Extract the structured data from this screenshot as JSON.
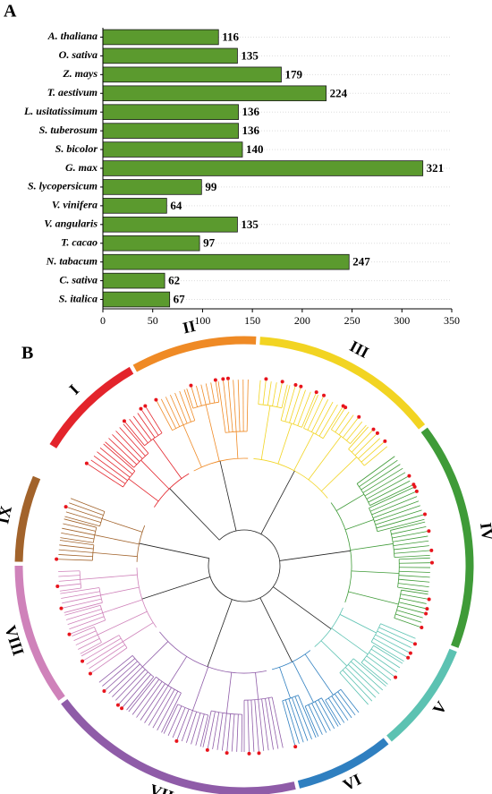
{
  "chart_data": {
    "type": "bar",
    "orientation": "horizontal",
    "panel_label": "A",
    "categories": [
      "A. thaliana",
      "O. sativa",
      "Z. mays",
      "T. aestivum",
      "L. usitatissimum",
      "S. tuberosum",
      "S. bicolor",
      "G. max",
      "S. lycopersicum",
      "V. vinifera",
      "V. angularis",
      "T. cacao",
      "N. tabacum",
      "C. sativa",
      "S. italica"
    ],
    "values": [
      116,
      135,
      179,
      224,
      136,
      136,
      140,
      321,
      99,
      64,
      135,
      97,
      247,
      62,
      67
    ],
    "color": "#5b9a2e",
    "xlim": [
      0,
      350
    ],
    "xticks": [
      0,
      50,
      100,
      150,
      200,
      250,
      300,
      350
    ]
  },
  "tree": {
    "panel_label": "B",
    "clades": [
      {
        "name": "I",
        "color": "#e3242b"
      },
      {
        "name": "II",
        "color": "#ef8a25"
      },
      {
        "name": "III",
        "color": "#f2d422"
      },
      {
        "name": "IV",
        "color": "#3f9b38"
      },
      {
        "name": "V",
        "color": "#5cc2b2"
      },
      {
        "name": "VI",
        "color": "#2f7fc0"
      },
      {
        "name": "VII",
        "color": "#8f5ca8"
      },
      {
        "name": "VIII",
        "color": "#cf82ba"
      },
      {
        "name": "IX",
        "color": "#a2632b"
      }
    ]
  }
}
